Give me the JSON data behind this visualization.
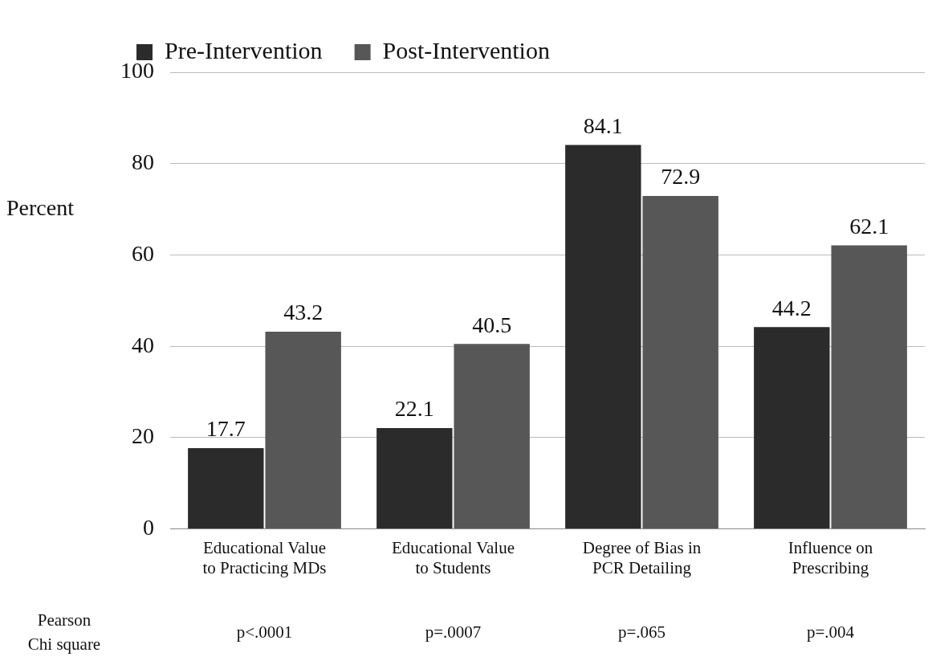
{
  "chart_data": {
    "type": "bar",
    "ylabel": "Percent",
    "categories": [
      "Educational Value to Practicing MDs",
      "Educational Value to Students",
      "Degree of Bias in PCR Detailing",
      "Influence on Prescribing"
    ],
    "series": [
      {
        "name": "Pre-Intervention",
        "color": "#2b2b2b",
        "values": [
          17.7,
          22.1,
          84.1,
          44.2
        ]
      },
      {
        "name": "Post-Intervention",
        "color": "#575757",
        "values": [
          43.2,
          40.5,
          72.9,
          62.1
        ]
      }
    ],
    "ylim": [
      0,
      100
    ],
    "yticks": [
      0,
      20,
      40,
      60,
      80,
      100
    ],
    "grid": "y",
    "legend": "top",
    "data_labels": true,
    "annotations": [
      "Pearson Chi square",
      "p<.0001",
      "p=.0007",
      "p=.065",
      "p=.004"
    ]
  }
}
